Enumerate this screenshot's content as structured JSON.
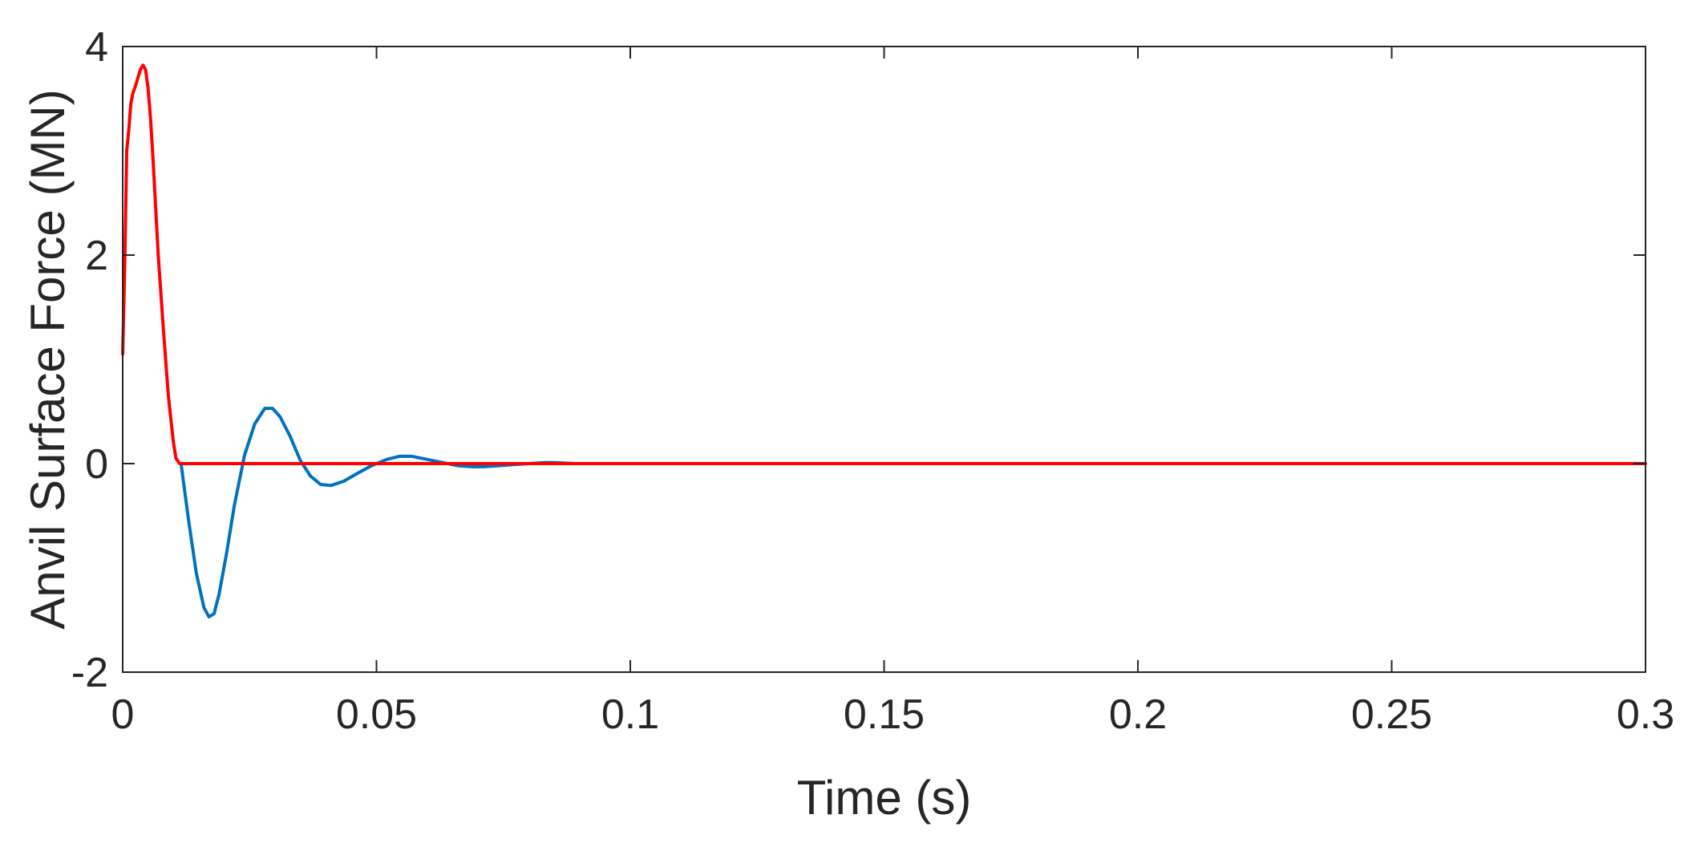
{
  "chart_data": {
    "type": "line",
    "title": "",
    "xlabel": "Time (s)",
    "ylabel": "Anvil Surface Force (MN)",
    "xlim": [
      0,
      0.3
    ],
    "ylim": [
      -2,
      4
    ],
    "xticks": [
      0,
      0.05,
      0.1,
      0.15,
      0.2,
      0.25,
      0.3
    ],
    "xtick_labels": [
      "0",
      "0.05",
      "0.1",
      "0.15",
      "0.2",
      "0.25",
      "0.3"
    ],
    "yticks": [
      -2,
      0,
      2,
      4
    ],
    "ytick_labels": [
      "-2",
      "0",
      "2",
      "4"
    ],
    "grid": false,
    "series": [
      {
        "color": "#0072BD",
        "x": [
          0.0115,
          0.013,
          0.0145,
          0.016,
          0.017,
          0.018,
          0.019,
          0.0205,
          0.022,
          0.024,
          0.026,
          0.028,
          0.0295,
          0.031,
          0.033,
          0.035,
          0.037,
          0.039,
          0.041,
          0.0435,
          0.046,
          0.049,
          0.052,
          0.0545,
          0.057,
          0.06,
          0.063,
          0.066,
          0.069,
          0.071,
          0.074,
          0.077,
          0.08,
          0.083,
          0.085,
          0.087,
          0.089
        ],
        "y": [
          0.0,
          -0.55,
          -1.05,
          -1.38,
          -1.47,
          -1.44,
          -1.25,
          -0.85,
          -0.4,
          0.08,
          0.38,
          0.53,
          0.53,
          0.45,
          0.26,
          0.03,
          -0.12,
          -0.2,
          -0.21,
          -0.17,
          -0.1,
          -0.02,
          0.04,
          0.07,
          0.07,
          0.04,
          0.01,
          -0.02,
          -0.03,
          -0.03,
          -0.02,
          -0.01,
          0.0,
          0.01,
          0.01,
          0.005,
          0.0
        ]
      },
      {
        "color": "#FF0000",
        "x": [
          0.0,
          0.0004,
          0.0008,
          0.0012,
          0.0016,
          0.002,
          0.0025,
          0.003,
          0.0035,
          0.004,
          0.0045,
          0.005,
          0.0055,
          0.006,
          0.007,
          0.008,
          0.009,
          0.01,
          0.0105,
          0.0112,
          0.012,
          0.05,
          0.1,
          0.15,
          0.2,
          0.25,
          0.3
        ],
        "y": [
          1.05,
          1.9,
          3.0,
          3.2,
          3.45,
          3.55,
          3.62,
          3.7,
          3.78,
          3.82,
          3.78,
          3.6,
          3.3,
          2.9,
          2.0,
          1.3,
          0.65,
          0.2,
          0.05,
          0.0,
          0.0,
          0.0,
          0.0,
          0.0,
          0.0,
          0.0,
          0.0
        ]
      }
    ]
  }
}
